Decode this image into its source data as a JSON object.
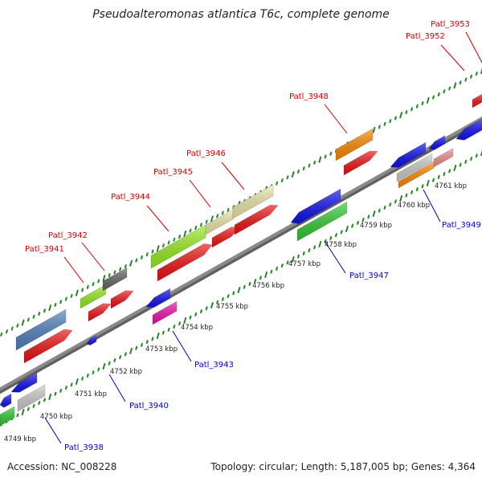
{
  "title": "Pseudoalteromonas atlantica T6c, complete genome",
  "footer": {
    "accession": "Accession: NC_008228",
    "summary": "Topology: circular; Length: 5,187,005 bp; Genes: 4,364"
  },
  "colors": {
    "backbone": "#8a8a8a",
    "tick_major": "#2e7d2e",
    "tick_minor": "#2e8b2e",
    "label_top": "#cc0000",
    "label_bottom": "#0000cc",
    "leader_top": "#cc0000",
    "leader_bottom": "#0000cc"
  },
  "scale_labels": [
    "4749 kbp",
    "4750 kbp",
    "4751 kbp",
    "4752 kbp",
    "4753 kbp",
    "4754 kbp",
    "4755 kbp",
    "4756 kbp",
    "4757 kbp",
    "4758 kbp",
    "4759 kbp",
    "4760 kbp",
    "4761 kbp"
  ],
  "genes_top": [
    "Patl_3941",
    "Patl_3942",
    "Patl_3944",
    "Patl_3945",
    "Patl_3946",
    "Patl_3948",
    "Patl_3952",
    "Patl_3953"
  ],
  "genes_bottom": [
    "Patl_3938",
    "Patl_3940",
    "Patl_3943",
    "Patl_3947",
    "Patl_3949"
  ]
}
